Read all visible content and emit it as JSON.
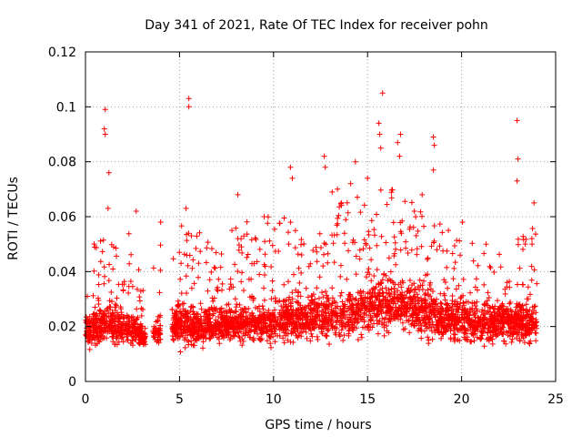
{
  "chart_data": {
    "type": "scatter",
    "title": "Day 341 of 2021, Rate Of TEC Index for receiver pohn",
    "xlabel": "GPS time / hours",
    "ylabel": "ROTI / TECUs",
    "xlim": [
      0,
      25
    ],
    "ylim": [
      0,
      0.12
    ],
    "xticks": [
      0,
      5,
      10,
      15,
      20,
      25
    ],
    "yticks": [
      0,
      0.02,
      0.04,
      0.06,
      0.08,
      0.1,
      0.12
    ],
    "xtick_labels": [
      "0",
      "5",
      "10",
      "15",
      "20",
      "25"
    ],
    "ytick_labels": [
      "0",
      "0.02",
      "0.04",
      "0.06",
      "0.08",
      "0.1",
      "0.12"
    ],
    "grid": true,
    "marker": "+",
    "color": "#ff0000",
    "series": [
      {
        "name": "ROTI",
        "density_profile": {
          "x": [
            0.0,
            0.5,
            1.0,
            1.5,
            2.0,
            2.5,
            3.0,
            3.2,
            3.4,
            3.6,
            4.0,
            4.2,
            4.6,
            4.8,
            5.0,
            6.0,
            7.0,
            8.0,
            9.0,
            10.0,
            11.0,
            12.0,
            13.0,
            14.0,
            15.0,
            16.0,
            17.0,
            18.0,
            19.0,
            20.0,
            21.0,
            22.0,
            23.0,
            24.0
          ],
          "min": [
            0.008,
            0.006,
            0.006,
            0.006,
            0.007,
            0.007,
            0.008,
            0.01,
            null,
            0.01,
            0.008,
            null,
            0.007,
            0.006,
            0.005,
            0.006,
            0.007,
            0.006,
            0.007,
            0.006,
            0.006,
            0.006,
            0.006,
            0.006,
            0.007,
            0.007,
            0.007,
            0.007,
            0.006,
            0.006,
            0.006,
            0.006,
            0.006,
            0.008
          ],
          "max": [
            0.055,
            0.05,
            0.06,
            0.05,
            0.045,
            0.06,
            0.04,
            0.02,
            null,
            0.045,
            0.05,
            null,
            0.045,
            0.058,
            0.06,
            0.055,
            0.05,
            0.058,
            0.06,
            0.06,
            0.065,
            0.05,
            0.07,
            0.07,
            0.065,
            0.075,
            0.07,
            0.06,
            0.06,
            0.052,
            0.05,
            0.048,
            0.052,
            0.058
          ],
          "median": [
            0.017,
            0.017,
            0.018,
            0.018,
            0.017,
            0.017,
            0.015,
            0.014,
            null,
            0.016,
            0.017,
            null,
            0.018,
            0.018,
            0.018,
            0.018,
            0.018,
            0.018,
            0.019,
            0.019,
            0.02,
            0.02,
            0.021,
            0.021,
            0.024,
            0.025,
            0.024,
            0.022,
            0.02,
            0.02,
            0.019,
            0.019,
            0.019,
            0.019
          ]
        },
        "outliers": [
          [
            1.05,
            0.099
          ],
          [
            1.0,
            0.092
          ],
          [
            1.05,
            0.09
          ],
          [
            1.25,
            0.076
          ],
          [
            5.5,
            0.103
          ],
          [
            5.5,
            0.1
          ],
          [
            5.35,
            0.063
          ],
          [
            10.9,
            0.078
          ],
          [
            11.0,
            0.074
          ],
          [
            12.7,
            0.082
          ],
          [
            12.75,
            0.078
          ],
          [
            14.35,
            0.08
          ],
          [
            15.0,
            0.074
          ],
          [
            15.8,
            0.105
          ],
          [
            15.6,
            0.094
          ],
          [
            15.65,
            0.09
          ],
          [
            15.7,
            0.085
          ],
          [
            16.75,
            0.09
          ],
          [
            16.6,
            0.087
          ],
          [
            16.7,
            0.082
          ],
          [
            18.5,
            0.089
          ],
          [
            18.55,
            0.086
          ],
          [
            18.5,
            0.077
          ],
          [
            22.95,
            0.095
          ],
          [
            23.0,
            0.081
          ],
          [
            22.95,
            0.073
          ],
          [
            23.85,
            0.065
          ],
          [
            13.4,
            0.07
          ],
          [
            14.1,
            0.072
          ],
          [
            17.9,
            0.068
          ],
          [
            8.1,
            0.068
          ],
          [
            2.7,
            0.062
          ],
          [
            1.2,
            0.063
          ],
          [
            4.0,
            0.058
          ],
          [
            9.5,
            0.06
          ],
          [
            20.05,
            0.058
          ],
          [
            19.3,
            0.055
          ],
          [
            21.3,
            0.05
          ]
        ]
      }
    ]
  }
}
